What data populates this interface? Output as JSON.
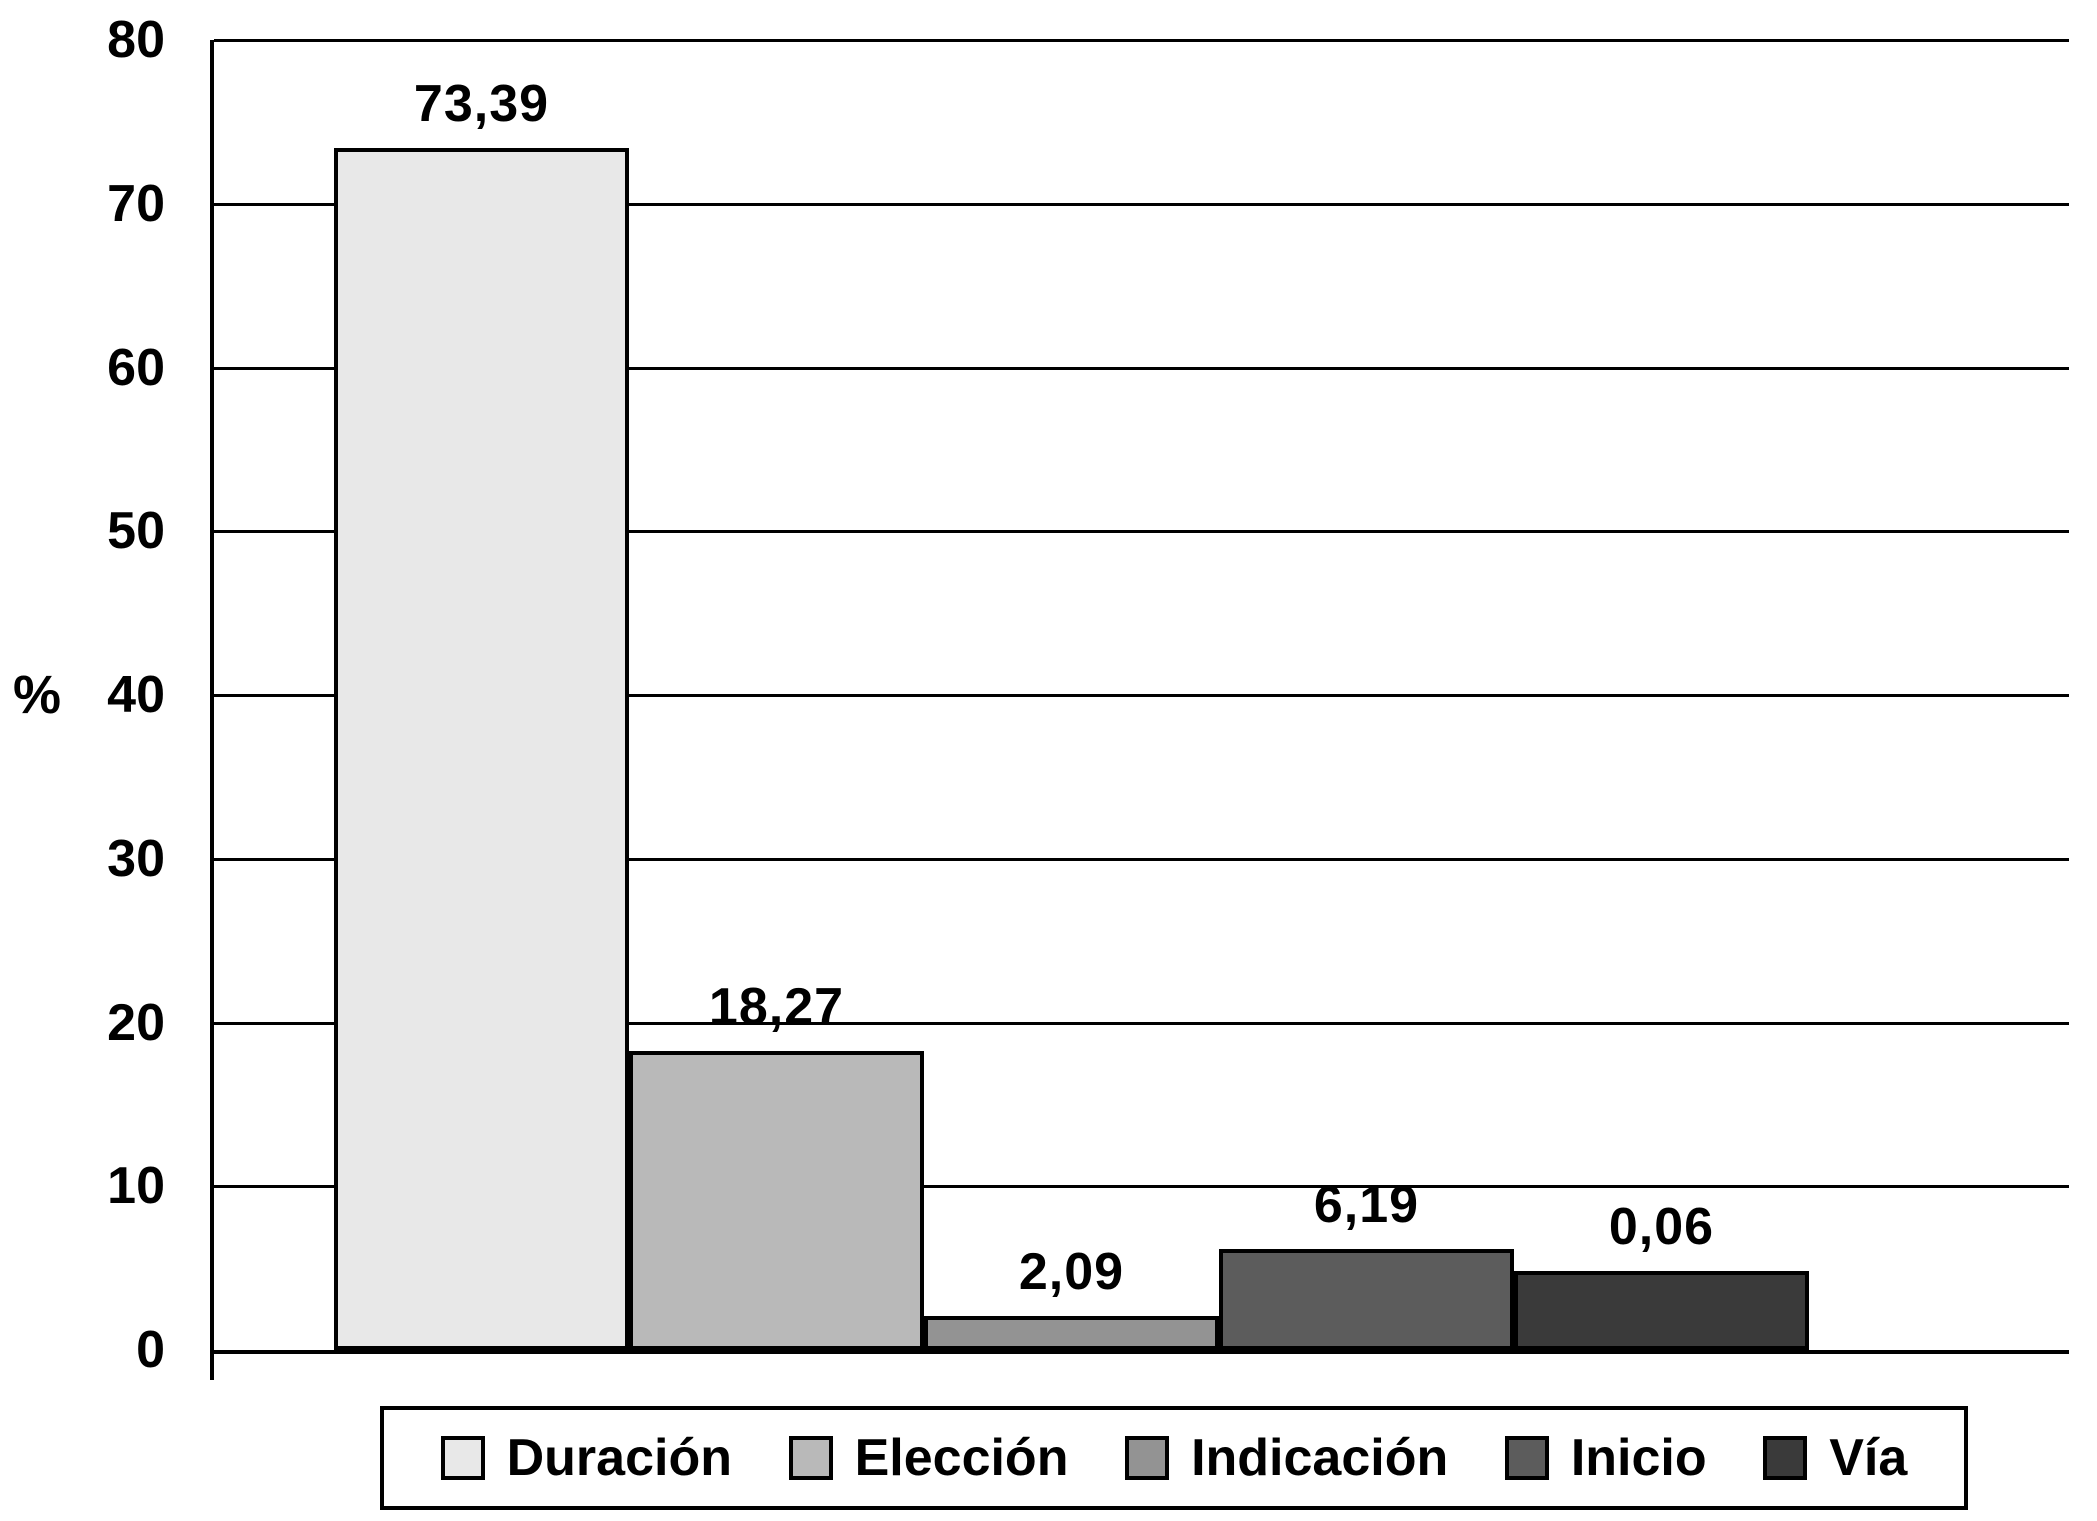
{
  "chart_data": {
    "type": "bar",
    "title": "",
    "categories": [
      "Duración",
      "Elección",
      "Indicación",
      "Inicio",
      "Vía"
    ],
    "values": [
      73.39,
      18.27,
      2.09,
      6.19,
      0.06
    ],
    "value_labels": [
      "73,39",
      "18,27",
      "2,09",
      "6,19",
      "0,06"
    ],
    "displayed_bar_heights": [
      73.39,
      18.27,
      2.09,
      6.19,
      4.85
    ],
    "bar_colors": [
      "#e8e8e8",
      "#b9b9b9",
      "#939393",
      "#5c5c5c",
      "#3a3a3a"
    ],
    "xlabel": "",
    "ylabel": "%",
    "ylim": [
      0,
      80
    ],
    "yticks": [
      0,
      10,
      20,
      30,
      40,
      50,
      60,
      70,
      80
    ],
    "grid": true,
    "legend_position": "bottom"
  }
}
